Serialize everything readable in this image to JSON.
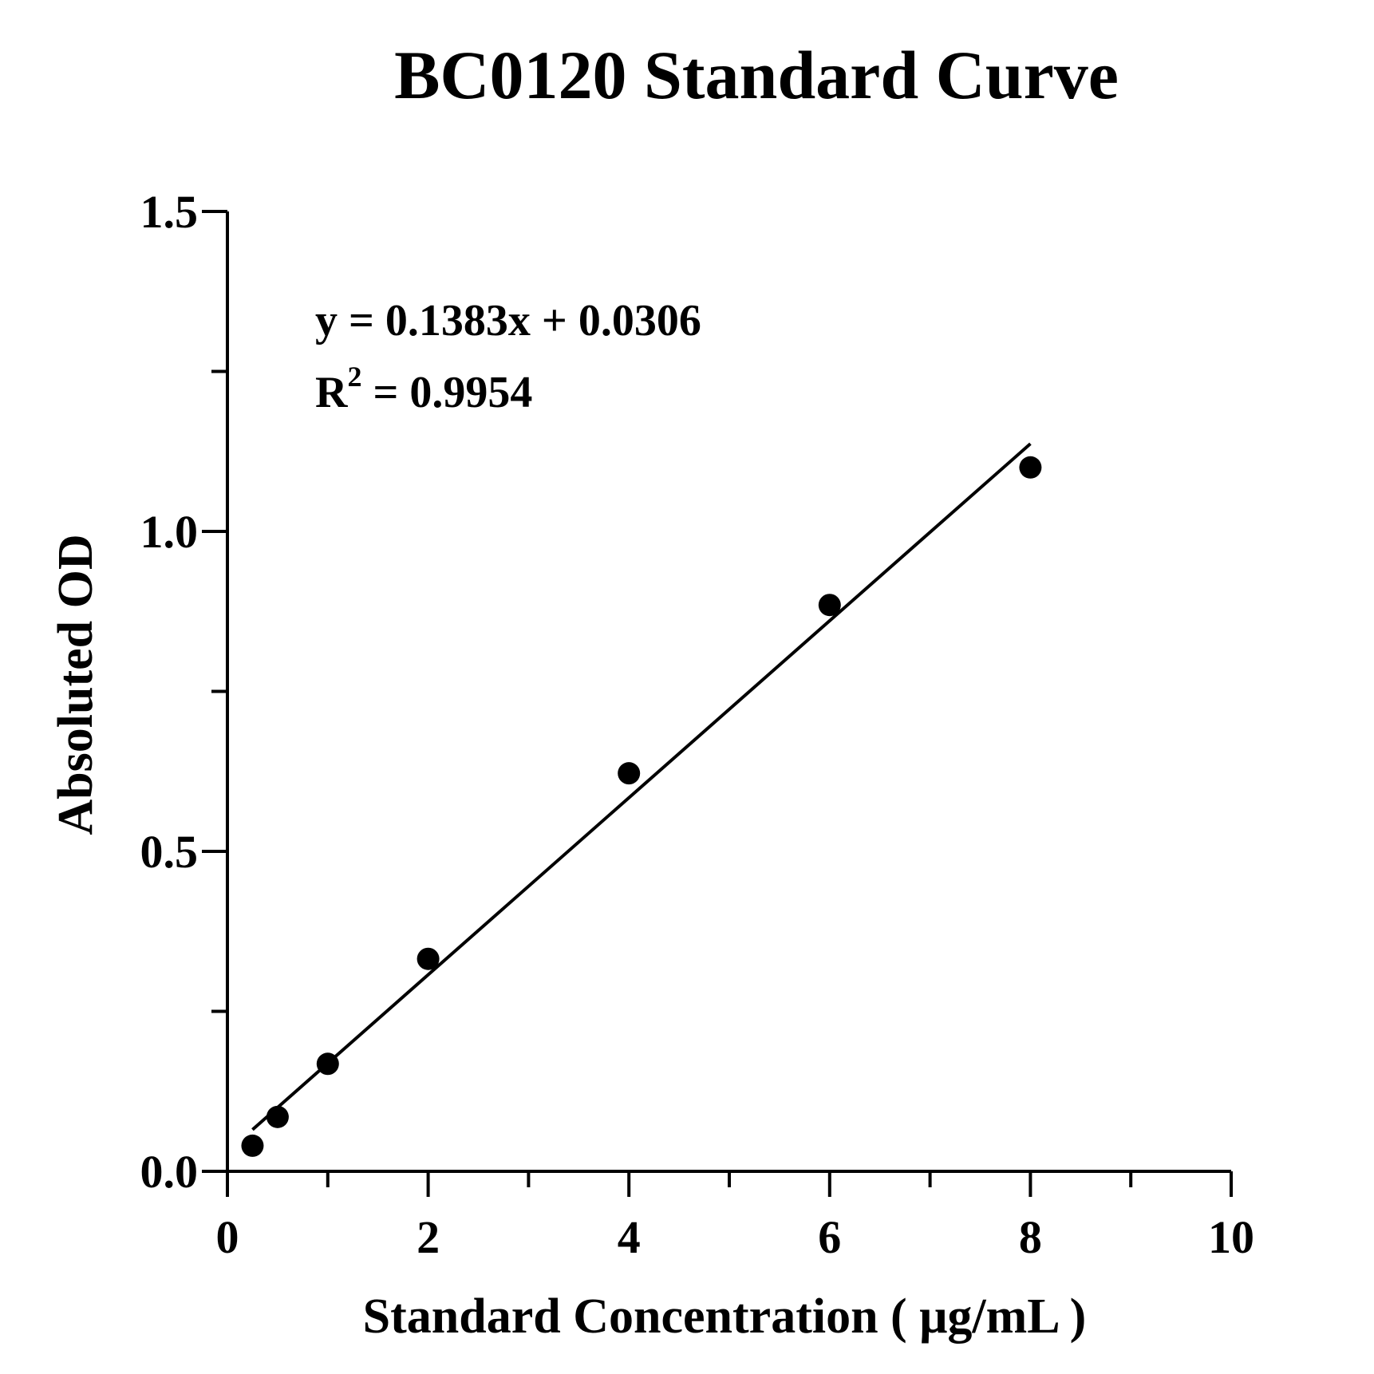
{
  "chart_data": {
    "type": "scatter",
    "title": "BC0120 Standard Curve",
    "xlabel": "Standard Concentration ( μg/mL )",
    "ylabel": "Absoluted OD",
    "xlim": [
      0,
      10
    ],
    "ylim": [
      0,
      1.5
    ],
    "x_ticks": [
      0,
      2,
      4,
      6,
      8,
      10
    ],
    "x_tick_labels": [
      "0",
      "2",
      "4",
      "6",
      "8",
      "10"
    ],
    "x_minor_ticks": [
      1,
      3,
      5,
      7,
      9
    ],
    "y_ticks": [
      0,
      0.5,
      1.0,
      1.5
    ],
    "y_tick_labels": [
      "0.0",
      "0.5",
      "1.0",
      "1.5"
    ],
    "y_minor_ticks": [
      0.25,
      0.75,
      1.25
    ],
    "grid": false,
    "points": [
      {
        "x": 0.25,
        "y": 0.04
      },
      {
        "x": 0.5,
        "y": 0.085
      },
      {
        "x": 1,
        "y": 0.168
      },
      {
        "x": 2,
        "y": 0.332
      },
      {
        "x": 4,
        "y": 0.622
      },
      {
        "x": 6,
        "y": 0.885
      },
      {
        "x": 8,
        "y": 1.1
      }
    ],
    "fit": {
      "slope": 0.1383,
      "intercept": 0.0306,
      "x_range": [
        0.25,
        8
      ]
    },
    "annotations": {
      "equation": "y = 0.1383x + 0.0306",
      "r2_prefix": "R",
      "r2_sup": "2",
      "r2_value": " = 0.9954"
    }
  }
}
